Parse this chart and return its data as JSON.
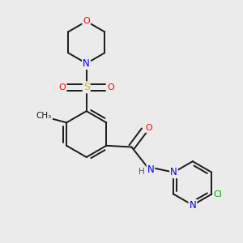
{
  "bg_color": "#ebebeb",
  "bond_color": "#1a1a1a",
  "atom_colors": {
    "O": "#ff0000",
    "N": "#0000ee",
    "S": "#ccbb00",
    "Cl": "#00aa00",
    "C": "#1a1a1a",
    "H": "#555555"
  },
  "figsize": [
    3.0,
    3.0
  ],
  "dpi": 100
}
